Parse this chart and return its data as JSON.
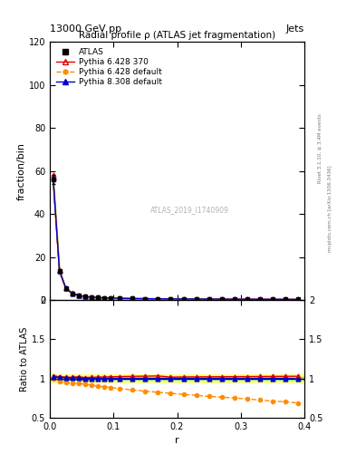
{
  "title": "Radial profile ρ (ATLAS jet fragmentation)",
  "top_left_label": "13000 GeV pp",
  "top_right_label": "Jets",
  "right_label_top": "Rivet 3.1.10, ≥ 3.4M events",
  "right_label_bottom": "mcplots.cern.ch [arXiv:1306.3436]",
  "watermark": "ATLAS_2019_I1740909",
  "ylabel_main": "fraction/bin",
  "ylabel_ratio": "Ratio to ATLAS",
  "xlabel": "r",
  "ylim_main": [
    0,
    120
  ],
  "ylim_ratio": [
    0.5,
    2.0
  ],
  "yticks_main": [
    0,
    20,
    40,
    60,
    80,
    100,
    120
  ],
  "r_values": [
    0.005,
    0.015,
    0.025,
    0.035,
    0.045,
    0.055,
    0.065,
    0.075,
    0.085,
    0.095,
    0.11,
    0.13,
    0.15,
    0.17,
    0.19,
    0.21,
    0.23,
    0.25,
    0.27,
    0.29,
    0.31,
    0.33,
    0.35,
    0.37,
    0.39
  ],
  "atlas_values": [
    56.0,
    13.5,
    5.5,
    3.2,
    2.2,
    1.7,
    1.4,
    1.2,
    1.05,
    0.95,
    0.85,
    0.75,
    0.68,
    0.62,
    0.58,
    0.54,
    0.51,
    0.48,
    0.46,
    0.44,
    0.42,
    0.4,
    0.38,
    0.37,
    0.35
  ],
  "atlas_err": [
    2.0,
    0.5,
    0.2,
    0.12,
    0.09,
    0.07,
    0.06,
    0.05,
    0.04,
    0.04,
    0.035,
    0.03,
    0.025,
    0.022,
    0.02,
    0.018,
    0.017,
    0.016,
    0.015,
    0.014,
    0.013,
    0.013,
    0.012,
    0.012,
    0.011
  ],
  "pythia6_370_values": [
    58.0,
    13.8,
    5.6,
    3.25,
    2.25,
    1.72,
    1.42,
    1.22,
    1.07,
    0.97,
    0.87,
    0.77,
    0.7,
    0.64,
    0.59,
    0.55,
    0.52,
    0.49,
    0.47,
    0.45,
    0.43,
    0.41,
    0.39,
    0.38,
    0.36
  ],
  "pythia6_default_values": [
    56.0,
    13.0,
    5.2,
    3.0,
    2.05,
    1.58,
    1.28,
    1.08,
    0.94,
    0.84,
    0.74,
    0.64,
    0.57,
    0.51,
    0.47,
    0.43,
    0.4,
    0.37,
    0.35,
    0.33,
    0.31,
    0.29,
    0.27,
    0.26,
    0.24
  ],
  "pythia8_default_values": [
    57.0,
    13.7,
    5.55,
    3.22,
    2.22,
    1.7,
    1.4,
    1.2,
    1.05,
    0.95,
    0.85,
    0.75,
    0.68,
    0.62,
    0.58,
    0.54,
    0.51,
    0.48,
    0.46,
    0.44,
    0.42,
    0.4,
    0.38,
    0.37,
    0.35
  ],
  "ratio_pythia6_370": [
    1.035,
    1.022,
    1.018,
    1.015,
    1.022,
    1.012,
    1.014,
    1.017,
    1.019,
    1.021,
    1.024,
    1.027,
    1.029,
    1.032,
    1.017,
    1.019,
    1.02,
    1.021,
    1.022,
    1.023,
    1.024,
    1.025,
    1.026,
    1.027,
    1.028
  ],
  "ratio_pythia6_default": [
    1.0,
    0.963,
    0.945,
    0.938,
    0.932,
    0.929,
    0.914,
    0.9,
    0.895,
    0.884,
    0.871,
    0.853,
    0.838,
    0.823,
    0.81,
    0.796,
    0.784,
    0.771,
    0.761,
    0.75,
    0.738,
    0.725,
    0.711,
    0.703,
    0.686
  ],
  "ratio_pythia8_default": [
    1.018,
    1.015,
    1.009,
    1.006,
    1.009,
    1.0,
    1.0,
    1.0,
    1.0,
    1.0,
    1.0,
    1.0,
    1.0,
    1.0,
    1.0,
    1.0,
    1.0,
    1.0,
    1.0,
    1.0,
    1.0,
    1.0,
    1.0,
    1.0,
    0.995
  ],
  "atlas_color": "#000000",
  "pythia6_370_color": "#e00000",
  "pythia6_default_color": "#ff8c00",
  "pythia8_default_color": "#0000cc",
  "legend_labels": [
    "ATLAS",
    "Pythia 6.428 370",
    "Pythia 6.428 default",
    "Pythia 8.308 default"
  ]
}
